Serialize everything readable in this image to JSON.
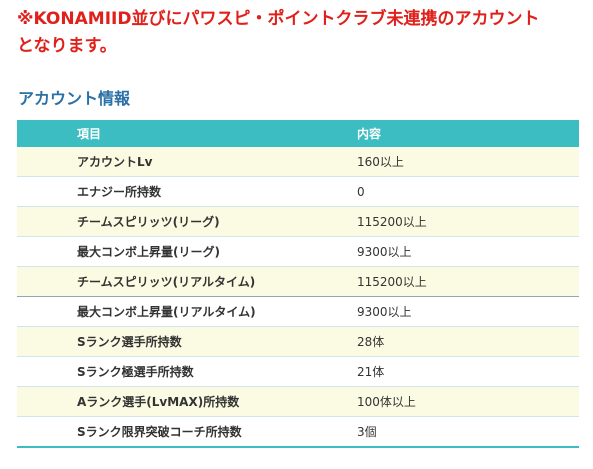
{
  "notice": {
    "line1": "※KONAMIID並びにパワスピ・ポイントクラブ未連携のアカウント",
    "line2": "となります。"
  },
  "section_title": "アカウント情報",
  "table": {
    "headers": {
      "item": "項目",
      "content": "内容"
    },
    "rows": [
      {
        "item": "アカウントLv",
        "value": "160以上"
      },
      {
        "item": "エナジー所持数",
        "value": "0"
      },
      {
        "item": "チームスピリッツ(リーグ)",
        "value": "115200以上"
      },
      {
        "item": "最大コンボ上昇量(リーグ)",
        "value": "9300以上"
      },
      {
        "item": "チームスピリッツ(リアルタイム)",
        "value": "115200以上"
      },
      {
        "item": "最大コンボ上昇量(リアルタイム)",
        "value": "9300以上"
      },
      {
        "item": "Sランク選手所持数",
        "value": "28体"
      },
      {
        "item": "Sランク極選手所持数",
        "value": "21体"
      },
      {
        "item": "Aランク選手(LvMAX)所持数",
        "value": "100体以上"
      },
      {
        "item": "Sランク限界突破コーチ所持数",
        "value": "3個"
      }
    ]
  },
  "colors": {
    "notice": "#e0201a",
    "title": "#2a6fa5",
    "header_bg": "#3bbdc1",
    "row_alt_bg": "#fbfbe3"
  }
}
